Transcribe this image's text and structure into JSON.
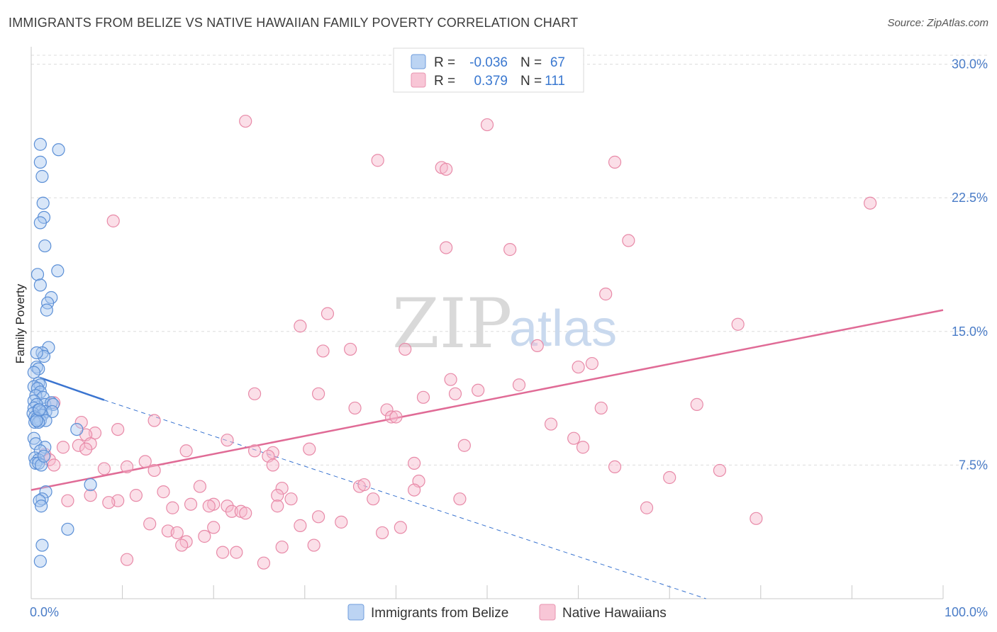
{
  "header": {
    "title": "IMMIGRANTS FROM BELIZE VS NATIVE HAWAIIAN FAMILY POVERTY CORRELATION CHART",
    "source": "Source: ZipAtlas.com"
  },
  "watermark": {
    "zip": "ZIP",
    "atlas": "atlas"
  },
  "legend": {
    "rows": [
      {
        "r_label": "R =",
        "r_value": "-0.036",
        "n_label": "N =",
        "n_value": "67"
      },
      {
        "r_label": "R =",
        "r_value": "0.379",
        "n_label": "N =",
        "n_value": "111"
      }
    ]
  },
  "colors": {
    "blue_fill": "#a9c8f0",
    "blue_stroke": "#5b8fd6",
    "blue_line": "#3a74d0",
    "pink_fill": "#f6b8cc",
    "pink_stroke": "#e88aa8",
    "pink_line": "#e06b96",
    "grid": "#dcdcdc",
    "axis_text": "#4a7cc7"
  },
  "chart_data": {
    "type": "scatter",
    "title": "IMMIGRANTS FROM BELIZE VS NATIVE HAWAIIAN FAMILY POVERTY CORRELATION CHART",
    "xlabel": "",
    "ylabel": "Family Poverty",
    "xlim": [
      0,
      100
    ],
    "ylim": [
      0,
      30.5
    ],
    "x_tick_labels": [
      {
        "value": 0,
        "label": "0.0%"
      },
      {
        "value": 100,
        "label": "100.0%"
      }
    ],
    "y_tick_labels": [
      {
        "value": 7.5,
        "label": "7.5%"
      },
      {
        "value": 15.0,
        "label": "15.0%"
      },
      {
        "value": 22.5,
        "label": "22.5%"
      },
      {
        "value": 30.0,
        "label": "30.0%"
      }
    ],
    "x_minor_ticks": [
      0,
      10,
      20,
      30,
      40,
      50,
      60,
      70,
      80,
      90,
      100
    ],
    "legend_position": "top-center",
    "series": [
      {
        "name": "Immigrants from Belize",
        "color": "#a9c8f0",
        "points": [
          [
            1.0,
            25.5
          ],
          [
            3.0,
            25.2
          ],
          [
            1.0,
            24.5
          ],
          [
            1.2,
            23.7
          ],
          [
            1.3,
            22.2
          ],
          [
            1.4,
            21.4
          ],
          [
            1.0,
            21.1
          ],
          [
            1.5,
            19.8
          ],
          [
            2.9,
            18.4
          ],
          [
            0.7,
            18.2
          ],
          [
            1.0,
            17.6
          ],
          [
            2.2,
            16.9
          ],
          [
            1.8,
            16.6
          ],
          [
            1.7,
            16.2
          ],
          [
            1.9,
            14.1
          ],
          [
            1.2,
            13.8
          ],
          [
            1.4,
            13.6
          ],
          [
            0.6,
            13.8
          ],
          [
            0.6,
            13.0
          ],
          [
            0.8,
            12.9
          ],
          [
            0.3,
            12.7
          ],
          [
            0.8,
            12.1
          ],
          [
            1.0,
            12.0
          ],
          [
            0.3,
            11.9
          ],
          [
            0.7,
            11.8
          ],
          [
            1.0,
            11.6
          ],
          [
            0.5,
            11.4
          ],
          [
            1.3,
            11.3
          ],
          [
            0.3,
            11.1
          ],
          [
            1.5,
            10.9
          ],
          [
            2.2,
            11.0
          ],
          [
            0.6,
            10.9
          ],
          [
            2.4,
            10.9
          ],
          [
            0.3,
            10.7
          ],
          [
            0.8,
            10.6
          ],
          [
            1.1,
            10.5
          ],
          [
            1.6,
            10.5
          ],
          [
            2.3,
            10.5
          ],
          [
            0.2,
            10.4
          ],
          [
            1.2,
            10.3
          ],
          [
            0.4,
            10.2
          ],
          [
            0.6,
            10.1
          ],
          [
            1.0,
            10.0
          ],
          [
            1.6,
            10.0
          ],
          [
            0.4,
            9.9
          ],
          [
            0.8,
            9.9
          ],
          [
            5.0,
            9.5
          ],
          [
            0.3,
            9.0
          ],
          [
            0.5,
            8.7
          ],
          [
            1.5,
            8.5
          ],
          [
            1.0,
            8.3
          ],
          [
            0.4,
            7.9
          ],
          [
            0.8,
            7.8
          ],
          [
            0.5,
            7.6
          ],
          [
            0.8,
            7.6
          ],
          [
            1.1,
            7.5
          ],
          [
            6.5,
            6.4
          ],
          [
            1.6,
            6.0
          ],
          [
            1.2,
            5.6
          ],
          [
            0.9,
            5.5
          ],
          [
            1.1,
            5.2
          ],
          [
            4.0,
            3.9
          ],
          [
            1.2,
            3.0
          ],
          [
            1.0,
            2.1
          ],
          [
            0.6,
            10.0
          ],
          [
            1.4,
            8.0
          ],
          [
            0.9,
            10.6
          ]
        ]
      },
      {
        "name": "Native Hawaiians",
        "color": "#f6b8cc",
        "points": [
          [
            23.5,
            26.8
          ],
          [
            50.0,
            26.6
          ],
          [
            38.0,
            24.6
          ],
          [
            45.0,
            24.2
          ],
          [
            45.5,
            24.1
          ],
          [
            64.0,
            24.5
          ],
          [
            92.0,
            22.2
          ],
          [
            9.0,
            21.2
          ],
          [
            65.5,
            20.1
          ],
          [
            45.5,
            19.7
          ],
          [
            52.5,
            19.6
          ],
          [
            63.0,
            17.1
          ],
          [
            32.5,
            16.0
          ],
          [
            29.5,
            15.3
          ],
          [
            77.5,
            15.4
          ],
          [
            35.0,
            14.0
          ],
          [
            32.0,
            13.9
          ],
          [
            41.0,
            14.0
          ],
          [
            55.5,
            14.2
          ],
          [
            61.5,
            13.2
          ],
          [
            60.0,
            13.0
          ],
          [
            46.0,
            12.3
          ],
          [
            53.5,
            12.0
          ],
          [
            49.0,
            11.7
          ],
          [
            24.5,
            11.5
          ],
          [
            31.5,
            11.5
          ],
          [
            46.5,
            11.5
          ],
          [
            43.0,
            11.3
          ],
          [
            2.5,
            11.0
          ],
          [
            35.5,
            10.7
          ],
          [
            39.0,
            10.6
          ],
          [
            62.5,
            10.7
          ],
          [
            73.0,
            10.9
          ],
          [
            39.5,
            10.2
          ],
          [
            40.0,
            10.2
          ],
          [
            13.5,
            10.0
          ],
          [
            5.5,
            9.9
          ],
          [
            57.0,
            9.8
          ],
          [
            9.5,
            9.5
          ],
          [
            7.0,
            9.3
          ],
          [
            6.0,
            9.2
          ],
          [
            59.5,
            9.0
          ],
          [
            21.5,
            8.9
          ],
          [
            6.5,
            8.7
          ],
          [
            5.2,
            8.6
          ],
          [
            3.5,
            8.5
          ],
          [
            6.0,
            8.4
          ],
          [
            60.5,
            8.5
          ],
          [
            30.5,
            8.4
          ],
          [
            47.5,
            8.6
          ],
          [
            17.0,
            8.3
          ],
          [
            24.5,
            8.3
          ],
          [
            26.5,
            8.2
          ],
          [
            1.5,
            8.1
          ],
          [
            26.0,
            8.0
          ],
          [
            2.0,
            7.8
          ],
          [
            12.5,
            7.7
          ],
          [
            2.5,
            7.5
          ],
          [
            26.5,
            7.5
          ],
          [
            42.0,
            7.6
          ],
          [
            8.0,
            7.3
          ],
          [
            10.5,
            7.4
          ],
          [
            64.0,
            7.4
          ],
          [
            13.5,
            7.2
          ],
          [
            75.5,
            7.2
          ],
          [
            70.0,
            6.8
          ],
          [
            42.5,
            6.6
          ],
          [
            18.5,
            6.3
          ],
          [
            36.0,
            6.3
          ],
          [
            27.5,
            6.2
          ],
          [
            36.5,
            6.4
          ],
          [
            42.0,
            6.1
          ],
          [
            14.5,
            6.0
          ],
          [
            6.5,
            5.8
          ],
          [
            11.5,
            5.8
          ],
          [
            27.0,
            5.8
          ],
          [
            28.5,
            5.6
          ],
          [
            9.5,
            5.5
          ],
          [
            37.5,
            5.6
          ],
          [
            47.0,
            5.6
          ],
          [
            4.0,
            5.5
          ],
          [
            8.5,
            5.4
          ],
          [
            17.5,
            5.3
          ],
          [
            20.0,
            5.3
          ],
          [
            27.0,
            5.2
          ],
          [
            19.5,
            5.2
          ],
          [
            21.5,
            5.2
          ],
          [
            15.5,
            5.1
          ],
          [
            67.5,
            5.1
          ],
          [
            22.0,
            4.9
          ],
          [
            23.0,
            4.9
          ],
          [
            23.5,
            4.8
          ],
          [
            31.5,
            4.6
          ],
          [
            79.5,
            4.5
          ],
          [
            34.0,
            4.3
          ],
          [
            13.0,
            4.2
          ],
          [
            20.0,
            4.0
          ],
          [
            29.5,
            4.1
          ],
          [
            40.5,
            4.0
          ],
          [
            15.0,
            3.8
          ],
          [
            16.0,
            3.7
          ],
          [
            38.5,
            3.7
          ],
          [
            19.0,
            3.5
          ],
          [
            17.0,
            3.2
          ],
          [
            16.5,
            3.0
          ],
          [
            31.0,
            3.0
          ],
          [
            27.5,
            2.9
          ],
          [
            21.0,
            2.6
          ],
          [
            22.5,
            2.6
          ],
          [
            10.5,
            2.2
          ],
          [
            25.5,
            2.0
          ]
        ]
      }
    ],
    "trend_lines": [
      {
        "series": "Immigrants from Belize",
        "solid_from": [
          1.0,
          12.4
        ],
        "solid_to": [
          8.0,
          11.15
        ],
        "dashed_to": [
          74.0,
          0.0
        ]
      },
      {
        "series": "Native Hawaiians",
        "from": [
          0.0,
          6.1
        ],
        "to": [
          100.0,
          16.2
        ]
      }
    ]
  }
}
